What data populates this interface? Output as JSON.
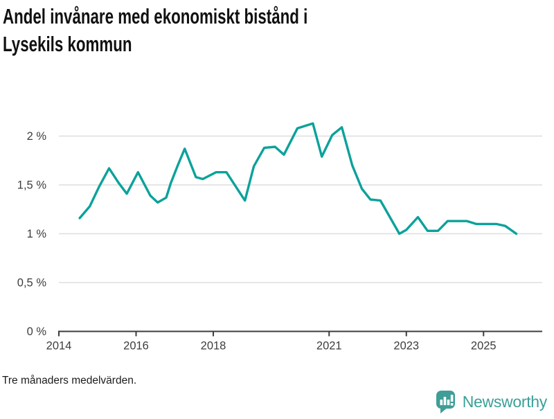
{
  "header": {
    "title_line1": "Andel invånare med ekonomiskt bistånd i",
    "title_line2": "Lysekils kommun"
  },
  "footer": {
    "note": "Tre månaders medelvärden."
  },
  "branding": {
    "name": "Newsworthy",
    "logo_icon": "bar-chart-speech-bubble",
    "logo_color": "#3f9e97",
    "text_color": "#3ba099"
  },
  "chart_data": {
    "type": "line",
    "title": "Andel invånare med ekonomiskt bistånd i Lysekils kommun",
    "note": "Tre månaders medelvärden.",
    "unit": "%",
    "line_color": "#0ba29a",
    "grid_color": "#dedede",
    "axis_color": "#3c3c3c",
    "label_color": "#3d3d3d",
    "grid": true,
    "legend": "none",
    "ylim": [
      0,
      2.3
    ],
    "xlim": [
      2013.95,
      2026.5
    ],
    "y_ticks": [
      {
        "value": 0,
        "label": "0 %"
      },
      {
        "value": 0.5,
        "label": "0,5 %"
      },
      {
        "value": 1,
        "label": "1 %"
      },
      {
        "value": 1.5,
        "label": "1,5 %"
      },
      {
        "value": 2,
        "label": "2 %"
      }
    ],
    "x_ticks": [
      {
        "value": 2014,
        "label": "2014"
      },
      {
        "value": 2016,
        "label": "2016"
      },
      {
        "value": 2018,
        "label": "2018"
      },
      {
        "value": 2021,
        "label": "2021"
      },
      {
        "value": 2023,
        "label": "2023"
      },
      {
        "value": 2025,
        "label": "2025"
      }
    ],
    "series": [
      {
        "name": "Andel invånare med ekonomiskt bistånd, Lysekils kommun",
        "x": [
          2014.54,
          2014.8,
          2015.04,
          2015.3,
          2015.55,
          2015.76,
          2016.05,
          2016.37,
          2016.56,
          2016.78,
          2016.9,
          2017.08,
          2017.26,
          2017.55,
          2017.73,
          2018.07,
          2018.34,
          2018.82,
          2019.05,
          2019.32,
          2019.6,
          2019.83,
          2020.18,
          2020.58,
          2020.81,
          2021.08,
          2021.33,
          2021.6,
          2021.85,
          2022.07,
          2022.33,
          2022.82,
          2023.0,
          2023.3,
          2023.55,
          2023.82,
          2024.07,
          2024.57,
          2024.81,
          2025.33,
          2025.56,
          2025.85
        ],
        "values": [
          1.16,
          1.28,
          1.48,
          1.67,
          1.52,
          1.41,
          1.63,
          1.39,
          1.32,
          1.37,
          1.52,
          1.7,
          1.87,
          1.58,
          1.56,
          1.63,
          1.63,
          1.34,
          1.69,
          1.88,
          1.89,
          1.81,
          2.08,
          2.13,
          1.79,
          2.01,
          2.09,
          1.7,
          1.46,
          1.35,
          1.34,
          1.0,
          1.04,
          1.17,
          1.03,
          1.03,
          1.13,
          1.13,
          1.1,
          1.1,
          1.08,
          1.0
        ]
      }
    ]
  }
}
